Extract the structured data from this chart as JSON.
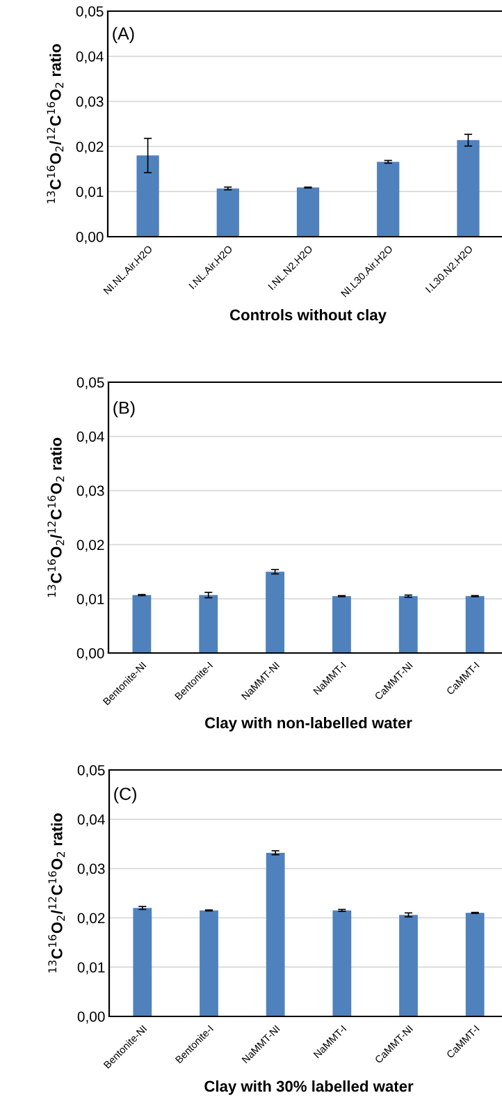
{
  "chart_data": [
    {
      "type": "bar",
      "annotations": [
        "(A)"
      ],
      "xlabel": "Controls without clay",
      "ylabel": "$^{13}$C$^{16}$O$_{2}$/$^{12}$C$^{16}$O$_{2}$ ratio",
      "categories": [
        "NI.NL.Air.H2O",
        "I.NL.Air.H2O",
        "I.NL.N2.H2O",
        "NI.L30.Air.H2O",
        "I.L30.N2.H2O"
      ],
      "values": [
        0.018,
        0.0107,
        0.0109,
        0.0166,
        0.0214
      ],
      "errors": [
        0.0038,
        0.0003,
        0.0001,
        0.0003,
        0.0013
      ],
      "color": "#4f81bd",
      "ylim": [
        0,
        0.05
      ],
      "yticks": [
        {
          "value": 0,
          "label": "0,00"
        },
        {
          "value": 0.01,
          "label": "0,01"
        },
        {
          "value": 0.02,
          "label": "0,02"
        },
        {
          "value": 0.03,
          "label": "0,03"
        },
        {
          "value": 0.04,
          "label": "0,04"
        },
        {
          "value": 0.05,
          "label": "0,05"
        }
      ],
      "grid": "y",
      "legend": false
    },
    {
      "type": "bar",
      "annotations": [
        "(B)"
      ],
      "xlabel": "Clay with non-labelled water",
      "ylabel": "$^{13}$C$^{16}$O$_{2}$/$^{12}$C$^{16}$O$_{2}$ ratio",
      "categories": [
        "Bentonite-NI",
        "Bentonite-I",
        "NaMMT-NI",
        "NaMMT-I",
        "CaMMT-NI",
        "CaMMT-I"
      ],
      "values": [
        0.0107,
        0.0107,
        0.015,
        0.0105,
        0.0105,
        0.0105
      ],
      "errors": [
        0.0001,
        0.0005,
        0.0004,
        0.0001,
        0.0002,
        0.0001
      ],
      "color": "#4f81bd",
      "ylim": [
        0,
        0.05
      ],
      "yticks": [
        {
          "value": 0,
          "label": "0,00"
        },
        {
          "value": 0.01,
          "label": "0,01"
        },
        {
          "value": 0.02,
          "label": "0,02"
        },
        {
          "value": 0.03,
          "label": "0,03"
        },
        {
          "value": 0.04,
          "label": "0,04"
        },
        {
          "value": 0.05,
          "label": "0,05"
        }
      ],
      "grid": "y",
      "legend": false
    },
    {
      "type": "bar",
      "annotations": [
        "(C)"
      ],
      "xlabel": "Clay with 30% labelled water",
      "ylabel": "$^{13}$C$^{16}$O$_{2}$/$^{12}$C$^{16}$O$_{2}$ ratio",
      "categories": [
        "Bentonite-NI",
        "Bentonite-I",
        "NaMMT-NI",
        "NaMMT-I",
        "CaMMT-NI",
        "CaMMT-I"
      ],
      "values": [
        0.022,
        0.0215,
        0.0332,
        0.0215,
        0.0206,
        0.021
      ],
      "errors": [
        0.0003,
        0.0001,
        0.0004,
        0.0002,
        0.0004,
        0.0001
      ],
      "color": "#4f81bd",
      "ylim": [
        0,
        0.05
      ],
      "yticks": [
        {
          "value": 0,
          "label": "0,00"
        },
        {
          "value": 0.01,
          "label": "0,01"
        },
        {
          "value": 0.02,
          "label": "0,02"
        },
        {
          "value": 0.03,
          "label": "0,03"
        },
        {
          "value": 0.04,
          "label": "0,04"
        },
        {
          "value": 0.05,
          "label": "0,05"
        }
      ],
      "grid": "y",
      "legend": false
    }
  ]
}
